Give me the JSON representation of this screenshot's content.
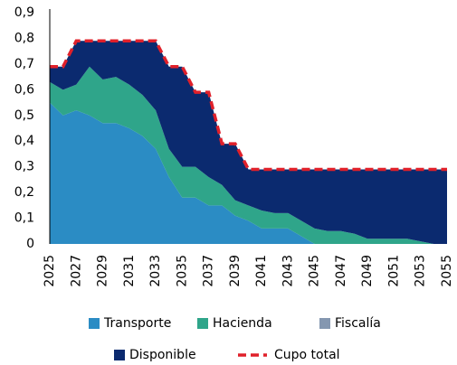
{
  "chart_data": {
    "type": "stacked-area",
    "x": [
      2025,
      2026,
      2027,
      2028,
      2029,
      2030,
      2031,
      2032,
      2033,
      2034,
      2035,
      2036,
      2037,
      2038,
      2039,
      2040,
      2041,
      2042,
      2043,
      2044,
      2045,
      2046,
      2047,
      2048,
      2049,
      2050,
      2051,
      2052,
      2053,
      2054,
      2055
    ],
    "xlim": [
      2025,
      2055
    ],
    "xticks": [
      2025,
      2027,
      2029,
      2031,
      2033,
      2035,
      2037,
      2039,
      2041,
      2043,
      2045,
      2047,
      2049,
      2051,
      2053,
      2055
    ],
    "ylim": [
      0,
      0.9
    ],
    "yticks": [
      0,
      {
        "value": 0.1,
        "label": "0,1"
      },
      {
        "value": 0.2,
        "label": "0,2"
      },
      {
        "value": 0.3,
        "label": "0,3"
      },
      {
        "value": 0.4,
        "label": "0,4"
      },
      {
        "value": 0.5,
        "label": "0,5"
      },
      {
        "value": 0.6,
        "label": "0,6"
      },
      {
        "value": 0.7,
        "label": "0,7"
      },
      {
        "value": 0.8,
        "label": "0,8"
      },
      {
        "value": 0.9,
        "label": "0,9"
      }
    ],
    "series": [
      {
        "name": "Transporte",
        "type": "area",
        "color": "#2b8cc4",
        "values": [
          0.55,
          0.5,
          0.52,
          0.5,
          0.47,
          0.47,
          0.45,
          0.42,
          0.37,
          0.26,
          0.18,
          0.18,
          0.15,
          0.15,
          0.11,
          0.09,
          0.06,
          0.06,
          0.06,
          0.03,
          0,
          0,
          0,
          0,
          0,
          0,
          0,
          0,
          0,
          0,
          0
        ]
      },
      {
        "name": "Hacienda",
        "type": "area",
        "color": "#2fa58a",
        "values": [
          0.08,
          0.1,
          0.1,
          0.19,
          0.17,
          0.18,
          0.17,
          0.16,
          0.15,
          0.11,
          0.12,
          0.12,
          0.11,
          0.08,
          0.06,
          0.06,
          0.07,
          0.06,
          0.06,
          0.06,
          0.06,
          0.05,
          0.05,
          0.04,
          0.02,
          0.02,
          0.02,
          0.02,
          0.01,
          0,
          0
        ]
      },
      {
        "name": "Fiscalía",
        "type": "area",
        "color": "#8497b0",
        "values": [
          0,
          0,
          0,
          0,
          0,
          0,
          0,
          0,
          0,
          0,
          0,
          0,
          0,
          0,
          0,
          0,
          0,
          0,
          0,
          0,
          0,
          0,
          0,
          0,
          0,
          0,
          0,
          0,
          0,
          0,
          0
        ]
      },
      {
        "name": "Disponible",
        "type": "area",
        "color": "#0b2a6f",
        "values": [
          0.06,
          0.09,
          0.17,
          0.1,
          0.15,
          0.14,
          0.17,
          0.21,
          0.27,
          0.32,
          0.39,
          0.29,
          0.33,
          0.16,
          0.22,
          0.14,
          0.16,
          0.17,
          0.17,
          0.2,
          0.23,
          0.24,
          0.24,
          0.25,
          0.27,
          0.27,
          0.27,
          0.27,
          0.28,
          0.29,
          0.29
        ]
      },
      {
        "name": "Cupo total",
        "type": "line",
        "color": "#e0202a",
        "values": [
          0.69,
          0.69,
          0.79,
          0.79,
          0.79,
          0.79,
          0.79,
          0.79,
          0.79,
          0.69,
          0.69,
          0.59,
          0.59,
          0.39,
          0.39,
          0.29,
          0.29,
          0.29,
          0.29,
          0.29,
          0.29,
          0.29,
          0.29,
          0.29,
          0.29,
          0.29,
          0.29,
          0.29,
          0.29,
          0.29,
          0.29
        ]
      }
    ]
  }
}
